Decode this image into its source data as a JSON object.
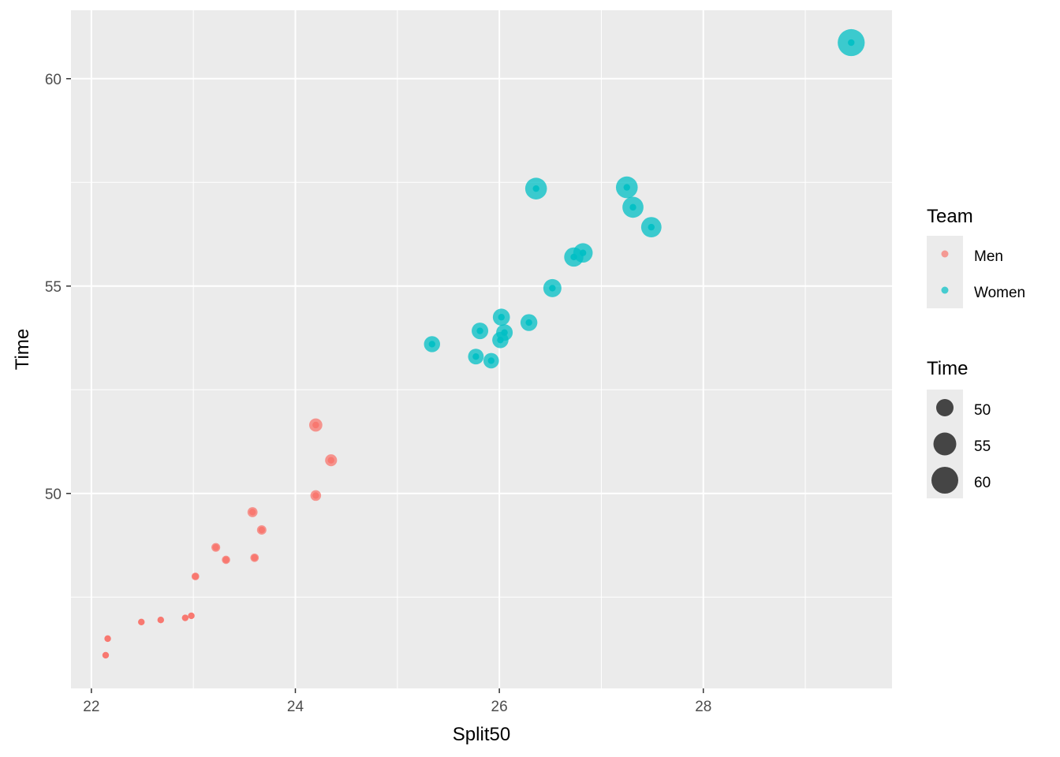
{
  "chart_data": {
    "type": "scatter",
    "xlabel": "Split50",
    "ylabel": "Time",
    "xlim": [
      21.8,
      29.85
    ],
    "ylim": [
      45.3,
      61.65
    ],
    "xticks": [
      22,
      24,
      26,
      28
    ],
    "yticks": [
      50,
      55,
      60
    ],
    "xminor": [
      23,
      25,
      27,
      29
    ],
    "yminor": [
      47.5,
      52.5,
      57.5
    ],
    "grid": true,
    "panel_background": "#ebebeb",
    "size_mapped_to": "Time",
    "series": [
      {
        "name": "Men",
        "color": "#F8766D",
        "points": [
          {
            "x": 22.14,
            "y": 46.1
          },
          {
            "x": 22.16,
            "y": 46.5
          },
          {
            "x": 22.49,
            "y": 46.9
          },
          {
            "x": 22.68,
            "y": 46.95
          },
          {
            "x": 22.92,
            "y": 47.0
          },
          {
            "x": 22.98,
            "y": 47.05
          },
          {
            "x": 23.02,
            "y": 48.0
          },
          {
            "x": 23.22,
            "y": 48.7
          },
          {
            "x": 23.32,
            "y": 48.4
          },
          {
            "x": 23.58,
            "y": 49.55
          },
          {
            "x": 23.6,
            "y": 48.45
          },
          {
            "x": 23.67,
            "y": 49.12
          },
          {
            "x": 24.2,
            "y": 49.95
          },
          {
            "x": 24.2,
            "y": 51.65
          },
          {
            "x": 24.35,
            "y": 50.8
          }
        ]
      },
      {
        "name": "Women",
        "color": "#00BFC4",
        "points": [
          {
            "x": 25.34,
            "y": 53.6
          },
          {
            "x": 25.77,
            "y": 53.3
          },
          {
            "x": 25.81,
            "y": 53.92
          },
          {
            "x": 25.92,
            "y": 53.2
          },
          {
            "x": 26.01,
            "y": 53.7
          },
          {
            "x": 26.02,
            "y": 54.25
          },
          {
            "x": 26.05,
            "y": 53.88
          },
          {
            "x": 26.29,
            "y": 54.12
          },
          {
            "x": 26.36,
            "y": 57.35
          },
          {
            "x": 26.52,
            "y": 54.95
          },
          {
            "x": 26.73,
            "y": 55.7
          },
          {
            "x": 26.82,
            "y": 55.8
          },
          {
            "x": 27.25,
            "y": 57.38
          },
          {
            "x": 27.31,
            "y": 56.9
          },
          {
            "x": 27.49,
            "y": 56.42
          },
          {
            "x": 29.45,
            "y": 60.87
          }
        ]
      }
    ],
    "legends": [
      {
        "title": "Team",
        "keys": [
          {
            "label": "Men",
            "color": "#F8766D"
          },
          {
            "label": "Women",
            "color": "#00BFC4"
          }
        ]
      },
      {
        "title": "Time",
        "keys": [
          {
            "label": "50",
            "value": 50
          },
          {
            "label": "55",
            "value": 55
          },
          {
            "label": "60",
            "value": 60
          }
        ]
      }
    ],
    "legend_position": "right"
  }
}
